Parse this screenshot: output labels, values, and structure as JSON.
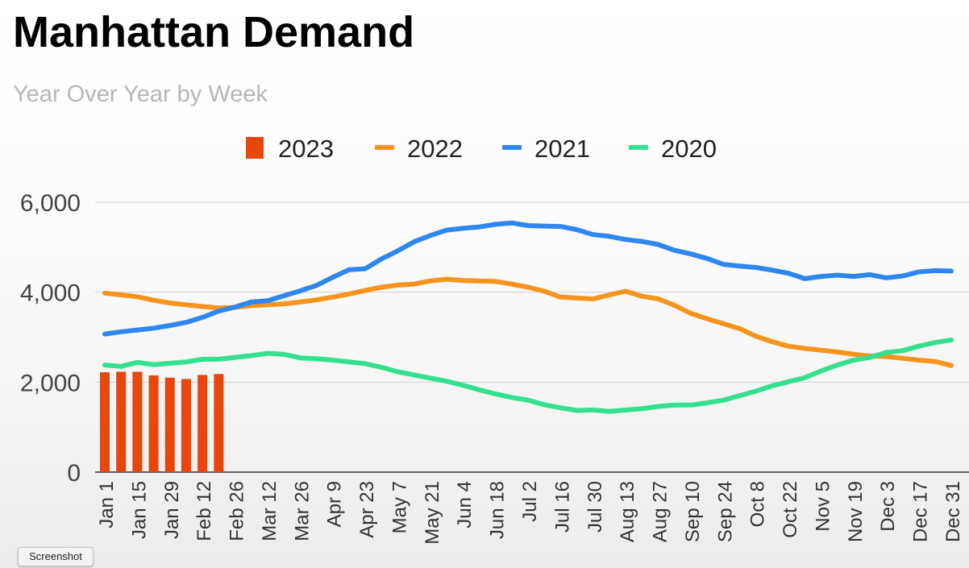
{
  "chart_data": {
    "type": "bar+line",
    "title": "Manhattan Demand",
    "subtitle": "Year Over Year by Week",
    "legend_position": "top",
    "grid": true,
    "ylim": [
      0,
      6000
    ],
    "yticks": [
      "0",
      "2,000",
      "4,000",
      "6,000"
    ],
    "ytick_values": [
      0,
      2000,
      4000,
      6000
    ],
    "x_week_count": 53,
    "x_tick_labels": [
      "Jan 1",
      "Jan 15",
      "Jan 29",
      "Feb 12",
      "Feb 26",
      "Mar 12",
      "Mar 26",
      "Apr 9",
      "Apr 23",
      "May 7",
      "May 21",
      "Jun 4",
      "Jun 18",
      "Jul 2",
      "Jul 16",
      "Jul 30",
      "Aug 13",
      "Aug 27",
      "Sep 10",
      "Sep 24",
      "Oct 8",
      "Oct 22",
      "Nov 5",
      "Nov 19",
      "Dec 3",
      "Dec 17",
      "Dec 31"
    ],
    "series": [
      {
        "name": "2023",
        "kind": "bar",
        "color": "#e8460a",
        "values": [
          2220,
          2230,
          2230,
          2150,
          2100,
          2070,
          2160,
          2180
        ]
      },
      {
        "name": "2022",
        "kind": "line",
        "color": "#f7941d",
        "values": [
          3980,
          3940,
          3900,
          3820,
          3760,
          3720,
          3680,
          3650,
          3660,
          3700,
          3720,
          3740,
          3780,
          3830,
          3890,
          3960,
          4040,
          4110,
          4160,
          4180,
          4250,
          4290,
          4260,
          4250,
          4240,
          4180,
          4110,
          4020,
          3890,
          3870,
          3850,
          3940,
          4020,
          3910,
          3850,
          3710,
          3530,
          3410,
          3300,
          3190,
          3020,
          2900,
          2800,
          2750,
          2710,
          2670,
          2620,
          2580,
          2570,
          2530,
          2490,
          2460,
          2370
        ]
      },
      {
        "name": "2021",
        "kind": "line",
        "color": "#2e86f0",
        "values": [
          3070,
          3120,
          3160,
          3200,
          3260,
          3330,
          3440,
          3580,
          3670,
          3780,
          3810,
          3920,
          4030,
          4150,
          4330,
          4500,
          4520,
          4740,
          4920,
          5120,
          5260,
          5380,
          5420,
          5450,
          5510,
          5540,
          5480,
          5470,
          5460,
          5390,
          5280,
          5240,
          5170,
          5130,
          5060,
          4930,
          4850,
          4750,
          4620,
          4580,
          4550,
          4490,
          4420,
          4300,
          4350,
          4380,
          4350,
          4390,
          4320,
          4360,
          4450,
          4480,
          4470
        ]
      },
      {
        "name": "2020",
        "kind": "line",
        "color": "#34e08f",
        "values": [
          2380,
          2350,
          2440,
          2390,
          2420,
          2450,
          2510,
          2510,
          2550,
          2590,
          2640,
          2620,
          2540,
          2520,
          2490,
          2450,
          2410,
          2330,
          2230,
          2160,
          2090,
          2020,
          1930,
          1830,
          1740,
          1660,
          1600,
          1500,
          1430,
          1370,
          1380,
          1350,
          1380,
          1410,
          1460,
          1490,
          1490,
          1540,
          1600,
          1700,
          1800,
          1920,
          2010,
          2100,
          2250,
          2380,
          2490,
          2550,
          2660,
          2700,
          2800,
          2880,
          2940
        ]
      }
    ]
  },
  "tooltip": {
    "text": "Screenshot"
  }
}
